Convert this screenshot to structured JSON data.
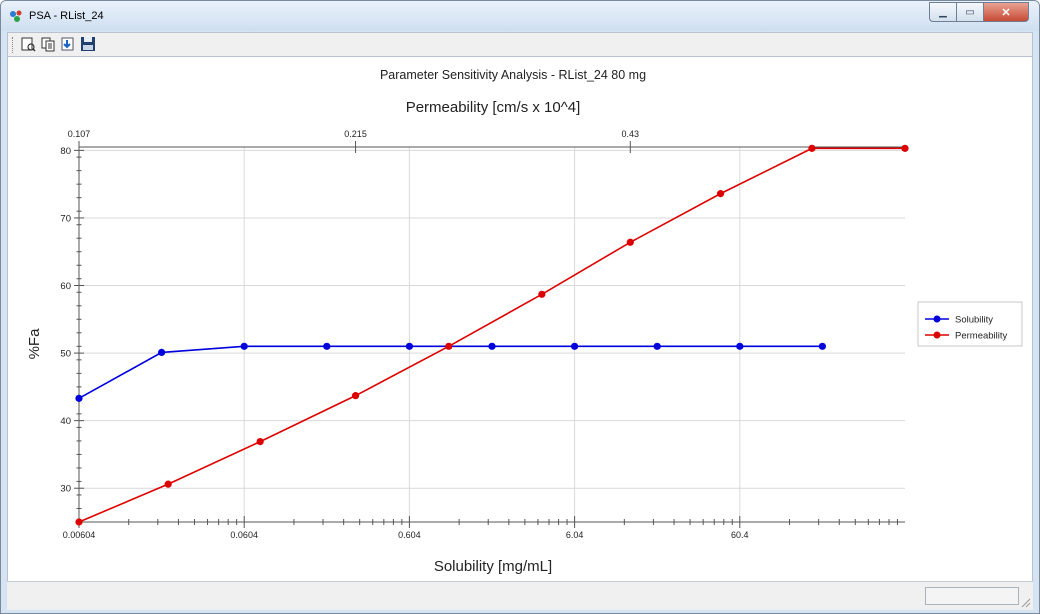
{
  "window": {
    "title": "PSA - RList_24"
  },
  "toolbar": {
    "buttons": [
      {
        "icon": "print-preview-icon"
      },
      {
        "icon": "copy-icon"
      },
      {
        "icon": "export-icon"
      },
      {
        "icon": "save-icon"
      }
    ]
  },
  "chart_data": {
    "type": "line",
    "title": "Parameter Sensitivity Analysis - RList_24   80 mg",
    "xlabel": "Solubility [mg/mL]",
    "x2label": "Permeability [cm/s x 10^4]",
    "ylabel": "%Fa",
    "x_scale": "log",
    "x_range": [
      0.00604,
      604
    ],
    "x_ticks": [
      0.00604,
      0.0604,
      0.604,
      6.04,
      60.4
    ],
    "x_tick_labels": [
      "0.00604",
      "0.0604",
      "0.604",
      "6.04",
      "60.4"
    ],
    "x2_range": [
      0.107,
      0.86
    ],
    "x2_ticks": [
      0.107,
      0.215,
      0.43
    ],
    "x2_tick_labels": [
      "0.107",
      "0.215",
      "0.43"
    ],
    "ylim": [
      25,
      80.5
    ],
    "y_ticks": [
      30,
      40,
      50,
      60,
      70,
      80
    ],
    "y_tick_labels": [
      "30",
      "40",
      "50",
      "60",
      "70",
      "80"
    ],
    "grid": true,
    "legend_position": "right",
    "series": [
      {
        "name": "Solubility",
        "axis": "bottom",
        "color": "#0000dd",
        "x": [
          0.00604,
          0.0191,
          0.0604,
          0.191,
          0.604,
          1.91,
          6.04,
          19.1,
          60.4,
          191
        ],
        "values": [
          43.3,
          50.1,
          51.0,
          51.0,
          51.0,
          51.0,
          51.0,
          51.0,
          51.0,
          51.0
        ]
      },
      {
        "name": "Permeability",
        "axis": "top",
        "color": "#dd0000",
        "x": [
          0.107,
          0.134,
          0.169,
          0.215,
          0.272,
          0.344,
          0.43,
          0.54,
          0.68,
          0.86
        ],
        "values": [
          25.0,
          30.6,
          36.9,
          43.7,
          51.0,
          58.7,
          66.4,
          73.6,
          80.3,
          80.3
        ]
      }
    ]
  }
}
